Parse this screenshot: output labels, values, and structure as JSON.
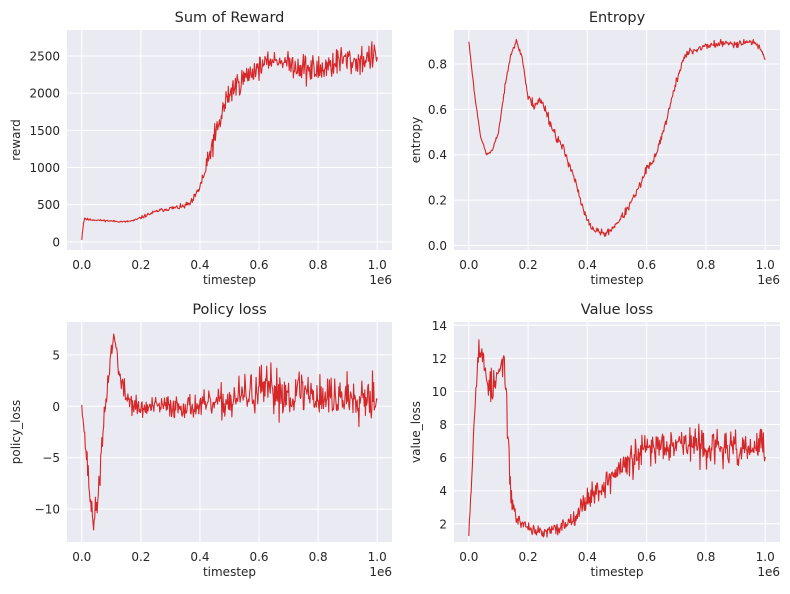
{
  "figure": {
    "background": "#ffffff",
    "axes_facecolor": "#eaeaf2",
    "grid_color": "#ffffff",
    "line_color": "#d62728"
  },
  "chart_data": [
    {
      "type": "line",
      "title": "Sum of Reward",
      "xlabel": "timestep",
      "ylabel": "reward",
      "x_offset_label": "1e6",
      "grid": true,
      "xlim": [
        -0.05,
        1.05
      ],
      "ylim": [
        -110,
        2850
      ],
      "xticks": [
        0.0,
        0.2,
        0.4,
        0.6,
        0.8,
        1.0
      ],
      "xtick_labels": [
        "0.0",
        "0.2",
        "0.4",
        "0.6",
        "0.8",
        "1.0"
      ],
      "yticks": [
        0,
        500,
        1000,
        1500,
        2000,
        2500
      ],
      "ytick_labels": [
        "0",
        "500",
        "1000",
        "1500",
        "2000",
        "2500"
      ],
      "noise_seed": 11,
      "series": [
        {
          "x": [
            0.0,
            0.005,
            0.01,
            0.02,
            0.04,
            0.08,
            0.12,
            0.15,
            0.18,
            0.22,
            0.26,
            0.3,
            0.34,
            0.37,
            0.39,
            0.41,
            0.43,
            0.44,
            0.46,
            0.48,
            0.5,
            0.52,
            0.55,
            0.58,
            0.6,
            0.62,
            0.65,
            0.68,
            0.7,
            0.72,
            0.75,
            0.78,
            0.8,
            0.82,
            0.85,
            0.88,
            0.9,
            0.92,
            0.95,
            0.97,
            1.0
          ],
          "values": [
            30,
            250,
            320,
            300,
            295,
            285,
            275,
            270,
            290,
            360,
            420,
            450,
            470,
            520,
            650,
            850,
            1100,
            1300,
            1500,
            1800,
            2000,
            2100,
            2200,
            2300,
            2350,
            2400,
            2450,
            2430,
            2400,
            2380,
            2350,
            2300,
            2300,
            2350,
            2400,
            2450,
            2450,
            2420,
            2450,
            2480,
            2500
          ],
          "noise": [
            5,
            40,
            30,
            15,
            10,
            10,
            10,
            10,
            15,
            20,
            20,
            25,
            30,
            40,
            60,
            90,
            130,
            150,
            170,
            180,
            160,
            150,
            140,
            130,
            120,
            100,
            90,
            90,
            120,
            150,
            180,
            200,
            200,
            190,
            180,
            170,
            170,
            170,
            170,
            170,
            150
          ]
        }
      ]
    },
    {
      "type": "line",
      "title": "Entropy",
      "xlabel": "timestep",
      "ylabel": "entropy",
      "x_offset_label": "1e6",
      "grid": true,
      "xlim": [
        -0.05,
        1.05
      ],
      "ylim": [
        -0.02,
        0.95
      ],
      "xticks": [
        0.0,
        0.2,
        0.4,
        0.6,
        0.8,
        1.0
      ],
      "xtick_labels": [
        "0.0",
        "0.2",
        "0.4",
        "0.6",
        "0.8",
        "1.0"
      ],
      "yticks": [
        0.0,
        0.2,
        0.4,
        0.6,
        0.8
      ],
      "ytick_labels": [
        "0.0",
        "0.2",
        "0.4",
        "0.6",
        "0.8"
      ],
      "noise_seed": 23,
      "series": [
        {
          "x": [
            0.0,
            0.02,
            0.04,
            0.06,
            0.08,
            0.1,
            0.12,
            0.14,
            0.16,
            0.18,
            0.2,
            0.22,
            0.24,
            0.26,
            0.28,
            0.3,
            0.32,
            0.34,
            0.36,
            0.38,
            0.4,
            0.42,
            0.44,
            0.46,
            0.48,
            0.5,
            0.52,
            0.54,
            0.56,
            0.58,
            0.6,
            0.62,
            0.64,
            0.66,
            0.68,
            0.7,
            0.72,
            0.74,
            0.76,
            0.8,
            0.85,
            0.9,
            0.95,
            0.98,
            1.0
          ],
          "values": [
            0.9,
            0.66,
            0.48,
            0.4,
            0.42,
            0.5,
            0.68,
            0.84,
            0.9,
            0.83,
            0.65,
            0.62,
            0.64,
            0.6,
            0.52,
            0.47,
            0.42,
            0.36,
            0.28,
            0.18,
            0.11,
            0.07,
            0.06,
            0.05,
            0.07,
            0.1,
            0.13,
            0.17,
            0.22,
            0.27,
            0.34,
            0.36,
            0.44,
            0.52,
            0.62,
            0.72,
            0.81,
            0.85,
            0.86,
            0.88,
            0.89,
            0.89,
            0.9,
            0.88,
            0.82
          ],
          "noise": [
            0.005,
            0.005,
            0.005,
            0.005,
            0.005,
            0.008,
            0.01,
            0.01,
            0.01,
            0.01,
            0.02,
            0.02,
            0.02,
            0.02,
            0.02,
            0.02,
            0.02,
            0.02,
            0.015,
            0.015,
            0.012,
            0.012,
            0.012,
            0.012,
            0.012,
            0.012,
            0.015,
            0.015,
            0.015,
            0.015,
            0.015,
            0.015,
            0.015,
            0.015,
            0.015,
            0.015,
            0.015,
            0.015,
            0.015,
            0.015,
            0.015,
            0.015,
            0.012,
            0.01,
            0.005
          ]
        }
      ]
    },
    {
      "type": "line",
      "title": "Policy loss",
      "xlabel": "timestep",
      "ylabel": "policy_loss",
      "x_offset_label": "1e6",
      "grid": true,
      "xlim": [
        -0.05,
        1.05
      ],
      "ylim": [
        -13.2,
        8.2
      ],
      "xticks": [
        0.0,
        0.2,
        0.4,
        0.6,
        0.8,
        1.0
      ],
      "xtick_labels": [
        "0.0",
        "0.2",
        "0.4",
        "0.6",
        "0.8",
        "1.0"
      ],
      "yticks": [
        -10,
        -5,
        0,
        5
      ],
      "ytick_labels": [
        "−10",
        "−5",
        "0",
        "5"
      ],
      "noise_seed": 37,
      "series": [
        {
          "x": [
            0.0,
            0.01,
            0.02,
            0.03,
            0.04,
            0.05,
            0.06,
            0.08,
            0.1,
            0.11,
            0.12,
            0.13,
            0.15,
            0.18,
            0.2,
            0.25,
            0.3,
            0.35,
            0.4,
            0.45,
            0.5,
            0.55,
            0.6,
            0.65,
            0.7,
            0.75,
            0.8,
            0.85,
            0.9,
            0.95,
            1.0
          ],
          "values": [
            0.3,
            -3.0,
            -6.0,
            -9.5,
            -11.0,
            -10.0,
            -7.0,
            0.0,
            5.5,
            6.8,
            5.0,
            2.5,
            1.0,
            0.0,
            -0.3,
            0.0,
            0.0,
            0.0,
            0.0,
            0.2,
            0.5,
            1.0,
            1.5,
            1.5,
            1.2,
            1.5,
            1.0,
            0.8,
            1.0,
            1.2,
            1.0
          ],
          "noise": [
            0.3,
            0.8,
            1.0,
            1.2,
            1.2,
            1.2,
            1.2,
            1.0,
            0.8,
            0.6,
            0.8,
            1.0,
            1.0,
            1.0,
            0.8,
            0.8,
            1.0,
            1.0,
            1.0,
            1.2,
            1.5,
            1.8,
            2.0,
            2.0,
            2.0,
            2.0,
            2.0,
            2.0,
            2.0,
            2.0,
            2.0
          ]
        }
      ]
    },
    {
      "type": "line",
      "title": "Value loss",
      "xlabel": "timestep",
      "ylabel": "value_loss",
      "x_offset_label": "1e6",
      "grid": true,
      "xlim": [
        -0.05,
        1.05
      ],
      "ylim": [
        0.9,
        14.2
      ],
      "xticks": [
        0.0,
        0.2,
        0.4,
        0.6,
        0.8,
        1.0
      ],
      "xtick_labels": [
        "0.0",
        "0.2",
        "0.4",
        "0.6",
        "0.8",
        "1.0"
      ],
      "yticks": [
        2,
        4,
        6,
        8,
        10,
        12,
        14
      ],
      "ytick_labels": [
        "2",
        "4",
        "6",
        "8",
        "10",
        "12",
        "14"
      ],
      "noise_seed": 53,
      "series": [
        {
          "x": [
            0.0,
            0.01,
            0.02,
            0.03,
            0.04,
            0.05,
            0.06,
            0.08,
            0.1,
            0.12,
            0.13,
            0.14,
            0.16,
            0.2,
            0.25,
            0.3,
            0.35,
            0.38,
            0.4,
            0.45,
            0.5,
            0.55,
            0.6,
            0.65,
            0.7,
            0.75,
            0.8,
            0.85,
            0.9,
            0.95,
            1.0
          ],
          "values": [
            1.5,
            5.0,
            9.0,
            12.5,
            12.5,
            11.5,
            11.0,
            10.0,
            11.0,
            12.0,
            8.0,
            4.0,
            2.3,
            1.8,
            1.4,
            1.7,
            2.3,
            3.0,
            3.6,
            4.2,
            5.2,
            5.8,
            6.5,
            6.8,
            7.0,
            6.8,
            6.6,
            6.6,
            6.4,
            6.5,
            6.8
          ],
          "noise": [
            0.2,
            0.5,
            0.8,
            0.8,
            0.8,
            1.0,
            1.0,
            1.0,
            0.8,
            0.5,
            0.8,
            0.8,
            0.3,
            0.3,
            0.3,
            0.4,
            0.4,
            0.5,
            0.6,
            0.7,
            0.8,
            0.9,
            0.9,
            0.9,
            0.9,
            0.9,
            0.9,
            0.9,
            0.9,
            0.9,
            0.9
          ]
        }
      ]
    }
  ]
}
